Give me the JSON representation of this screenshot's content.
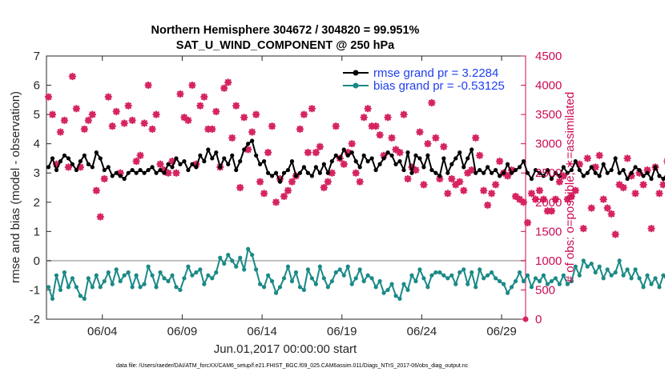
{
  "chart_data": {
    "type": "line",
    "title_line1": "Northern Hemisphere 304672 / 304820 = 99.951%",
    "title_line2": "SAT_U_WIND_COMPONENT @ 250 hPa",
    "xlabel": "Jun.01,2017 00:00:00 start",
    "ylabel": "rmse and bias (model - observation)",
    "ylabel_right": "# of obs: o=possible; ∗=assimilated",
    "footnote": "data file: /Users/raeder/DAI/ATM_forcXX/CAM6_setup/f.e21.FHIST_BGC.f09_025.CAM6assim.011/Diags_NTrS_2017-06/obs_diag_output.nc",
    "xlim": [
      0.0,
      30.0
    ],
    "ylim": [
      -2,
      7
    ],
    "ylim_right": [
      0,
      4500
    ],
    "x_ticks": [
      3.5,
      8.5,
      13.5,
      18.5,
      23.5,
      28.5
    ],
    "x_tick_labels": [
      "06/04",
      "06/09",
      "06/14",
      "06/19",
      "06/24",
      "06/29"
    ],
    "y_ticks": [
      -2,
      -1,
      0,
      1,
      2,
      3,
      4,
      5,
      6,
      7
    ],
    "y_tick_labels": [
      "-2",
      "-1",
      "0",
      "1",
      "2",
      "3",
      "4",
      "5",
      "6",
      "7"
    ],
    "y_right_ticks": [
      0,
      500,
      1000,
      1500,
      2000,
      2500,
      3000,
      3500,
      4000,
      4500
    ],
    "y_right_tick_labels": [
      "0",
      "500",
      "1000",
      "1500",
      "2000",
      "2500",
      "3000",
      "3500",
      "4000",
      "4500"
    ],
    "legend": [
      "rmse grand pr = 3.2284",
      "bias grand pr = -0.53125"
    ],
    "colors": {
      "rmse": "#000000",
      "bias": "#1a8a87",
      "obs": "#d6245f",
      "zero_line": "#bfbfbf"
    },
    "x_step": 0.25,
    "series": [
      {
        "name": "rmse",
        "values": [
          3.2,
          3.5,
          3.1,
          3.4,
          3.6,
          3.5,
          3.3,
          3.1,
          3.4,
          3.6,
          3.3,
          3.2,
          3.7,
          3.5,
          3.1,
          3.2,
          2.9,
          3.0,
          2.9,
          2.8,
          3.0,
          3.1,
          3.0,
          3.1,
          3.0,
          3.1,
          3.2,
          3.0,
          3.1,
          3.0,
          3.3,
          3.2,
          3.5,
          3.3,
          3.4,
          3.1,
          3.3,
          3.2,
          3.6,
          3.4,
          3.8,
          3.5,
          3.7,
          3.2,
          3.5,
          3.3,
          3.6,
          3.1,
          3.4,
          3.8,
          4.0,
          4.1,
          3.6,
          3.3,
          3.4,
          3.0,
          2.9,
          3.0,
          2.7,
          3.0,
          3.1,
          3.4,
          2.9,
          3.0,
          3.2,
          3.0,
          2.9,
          3.2,
          3.0,
          3.3,
          3.0,
          3.4,
          3.6,
          3.5,
          3.8,
          3.6,
          3.7,
          3.4,
          3.2,
          3.6,
          3.4,
          3.5,
          3.1,
          3.3,
          3.5,
          3.7,
          3.6,
          3.3,
          3.4,
          3.1,
          3.7,
          3.0,
          3.6,
          3.5,
          3.2,
          3.6,
          3.1,
          3.0,
          2.9,
          3.5,
          3.0,
          3.3,
          3.5,
          3.7,
          3.2,
          3.5,
          3.8,
          3.0,
          3.1,
          3.0,
          3.2,
          3.0,
          3.1,
          2.9,
          3.0,
          3.3,
          3.0,
          3.1,
          3.2,
          3.4,
          3.0,
          2.8,
          3.1,
          3.0,
          2.9,
          3.1,
          2.8,
          3.0,
          2.9,
          3.2,
          3.0,
          3.1,
          3.4,
          3.1,
          2.9,
          3.0,
          3.2,
          3.0,
          2.9,
          3.3,
          3.0,
          3.1,
          3.5,
          3.0,
          3.1,
          2.8,
          3.0,
          3.2,
          3.1,
          2.9,
          3.0,
          2.8,
          3.2,
          2.9,
          2.8,
          3.0,
          2.9,
          3.3,
          3.1,
          3.2,
          3.0,
          3.1,
          2.9,
          3.2,
          3.4,
          3.3,
          3.1,
          2.9,
          3.0,
          2.8,
          2.9,
          2.8,
          2.9,
          3.0,
          2.8,
          2.9,
          2.8,
          3.0,
          2.9,
          3.1,
          3.2,
          3.4,
          3.3,
          3.1,
          3.3,
          3.0,
          2.9,
          2.8,
          2.8,
          2.7,
          3.2
        ]
      },
      {
        "name": "bias",
        "values": [
          -0.9,
          -1.3,
          -0.5,
          -1.0,
          -0.4,
          -0.9,
          -0.6,
          -0.9,
          -1.2,
          -1.3,
          -0.6,
          -0.9,
          -0.5,
          -0.9,
          -0.7,
          -0.4,
          -0.8,
          -0.3,
          -0.7,
          -0.5,
          -0.4,
          -0.9,
          -0.5,
          -0.9,
          -0.8,
          -0.2,
          -0.5,
          -0.9,
          -0.4,
          -0.6,
          -0.7,
          -0.5,
          -0.9,
          -1.0,
          -0.6,
          -0.2,
          -0.5,
          -0.4,
          -0.3,
          -0.8,
          -0.5,
          -0.6,
          -0.4,
          0.1,
          -0.1,
          0.2,
          0.0,
          -0.2,
          0.1,
          -0.3,
          0.4,
          0.2,
          -0.3,
          -0.8,
          -0.9,
          -0.5,
          -0.7,
          -1.1,
          -0.9,
          -0.6,
          -0.2,
          -0.7,
          -0.4,
          -0.9,
          -1.0,
          -0.3,
          -0.6,
          -0.8,
          -0.2,
          -0.6,
          -0.9,
          -0.7,
          -0.4,
          -0.3,
          -0.5,
          -0.2,
          -0.8,
          -0.6,
          -0.3,
          -0.7,
          -0.5,
          -0.6,
          -0.9,
          -0.7,
          -1.1,
          -1.0,
          -0.8,
          -1.2,
          -1.3,
          -0.8,
          -1.0,
          -0.5,
          -0.7,
          -0.3,
          -0.6,
          -0.9,
          -0.5,
          -0.4,
          -0.4,
          -0.5,
          -0.6,
          -0.5,
          -0.8,
          -0.4,
          -0.3,
          -0.8,
          -0.4,
          -0.9,
          -0.3,
          -0.6,
          -0.5,
          -0.4,
          -0.6,
          -0.7,
          -0.8,
          -1.1,
          -0.9,
          -0.7,
          -0.4,
          -0.7,
          -0.5,
          -0.9,
          -0.6,
          -0.7,
          -0.5,
          -0.8,
          -0.7,
          -0.6,
          -0.8,
          -0.5,
          -0.8,
          -0.7,
          -0.2,
          -0.5,
          0.0,
          -0.2,
          -0.1,
          -0.4,
          -0.2,
          -0.6,
          -0.3,
          -0.5,
          -0.4,
          0.0,
          -0.5,
          -0.3,
          -0.6,
          -0.3,
          -0.6,
          -0.9,
          -0.5,
          -0.8,
          -0.6,
          -0.9,
          -0.5,
          -0.7,
          -0.6,
          -0.4,
          -0.7,
          -0.5,
          -0.3,
          -0.6,
          -0.4,
          -0.6,
          -0.8,
          -0.6,
          -0.4,
          -0.7,
          -0.5,
          -0.8,
          -0.7,
          -0.6,
          -0.9,
          -0.7,
          -0.5,
          -0.8,
          -0.6,
          -0.9,
          -0.6,
          -0.4,
          -0.7,
          -0.9,
          -0.6,
          -1.0,
          -0.7,
          -0.4,
          -0.1,
          0.0,
          -0.2,
          -0.5
        ]
      },
      {
        "name": "obs_assimilated",
        "values": [
          3800,
          3500,
          2650,
          3200,
          3400,
          2600,
          4150,
          3600,
          2600,
          3250,
          3400,
          3500,
          2200,
          1750,
          2400,
          3800,
          3300,
          3550,
          2500,
          3350,
          3650,
          3400,
          2700,
          2800,
          3350,
          4000,
          3250,
          3500,
          2650,
          2550,
          2500,
          2700,
          2500,
          3850,
          3450,
          3400,
          4000,
          2650,
          3650,
          3800,
          3250,
          3250,
          3550,
          2600,
          3950,
          4050,
          3100,
          3650,
          2250,
          3450,
          2900,
          3200,
          3500,
          2350,
          2150,
          2850,
          3300,
          2000,
          2400,
          2100,
          2200,
          2350,
          2450,
          3250,
          3500,
          2850,
          3600,
          2850,
          2950,
          2250,
          2350,
          2500,
          3300,
          2750,
          2650,
          2850,
          3000,
          2500,
          2350,
          3450,
          3600,
          3300,
          3300,
          3150,
          2800,
          3450,
          3100,
          2900,
          2850,
          3500,
          2400,
          2600,
          2550,
          3200,
          2300,
          3000,
          3700,
          3100,
          2400,
          2950,
          2150,
          2400,
          2300,
          2350,
          2200,
          2500,
          2550,
          3100,
          2800,
          2200,
          1950,
          2150,
          2300,
          2700,
          2500,
          2450,
          2550,
          2100,
          2050,
          2000,
          1650,
          2150,
          2050,
          2200,
          2050,
          1850,
          1850,
          2050,
          2350,
          2450,
          2050,
          2100,
          2200,
          2650,
          1550,
          2750,
          1900,
          2600,
          2800,
          2050,
          1900,
          1800,
          1450,
          2300,
          2250,
          2750,
          2450,
          2150,
          2500,
          2300,
          2550,
          1550,
          2600,
          2150,
          2300,
          2700,
          2400,
          2200,
          2550,
          2400,
          2450,
          1900,
          2550,
          2250,
          2550,
          2100,
          2200,
          2300,
          2650,
          2350,
          2400,
          2100,
          2550,
          2250,
          2500,
          2800,
          2400,
          2650,
          2500,
          2250,
          2700,
          2300,
          2600,
          2750,
          2400,
          2500,
          2650,
          2750,
          1850,
          2200,
          2350
        ]
      }
    ]
  }
}
